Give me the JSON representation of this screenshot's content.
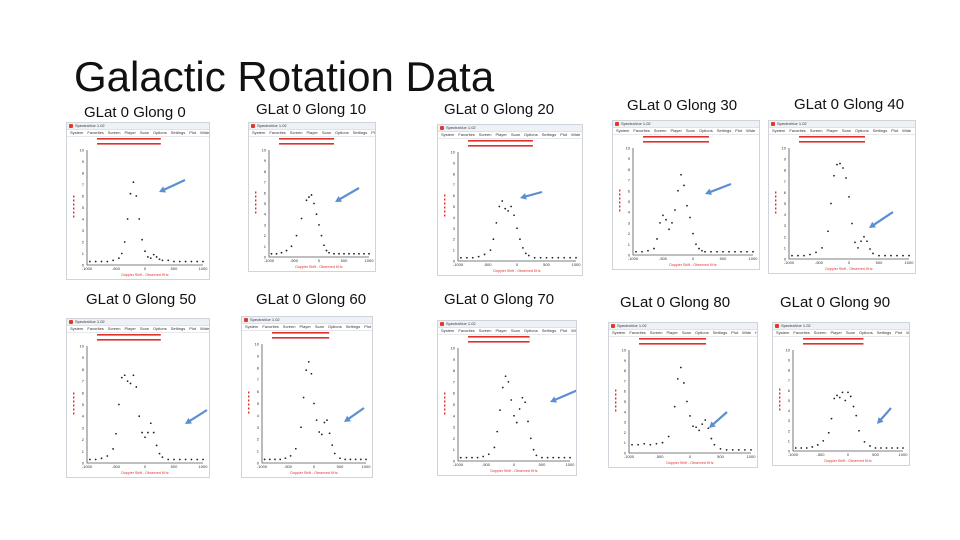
{
  "slide": {
    "title": "Galactic Rotation Data"
  },
  "screenshot_window": {
    "app_title": "SpectraVue 1.02",
    "menu": [
      "System",
      "Favorites",
      "Screen",
      "Player",
      "Scan",
      "Options",
      "Settings",
      "Plot",
      "Wide",
      "Help"
    ],
    "xlabel": "Doppler Shift - Observed KHz",
    "colors": {
      "points": "#222222",
      "annotation": "#e0302a",
      "axis": "#0000cc",
      "arrow": "#5b8fd0"
    }
  },
  "chart_data": [
    {
      "type": "scatter",
      "title": "GLat 0 Glong 0",
      "xlim": [
        -1000,
        1000
      ],
      "ylim": [
        0,
        10
      ],
      "x": [
        -950,
        -850,
        -750,
        -650,
        -550,
        -450,
        -400,
        -350,
        -300,
        -250,
        -200,
        -150,
        -100,
        -50,
        0,
        50,
        100,
        150,
        200,
        250,
        300,
        400,
        500,
        600,
        700,
        800,
        900,
        1000
      ],
      "y": [
        0.3,
        0.3,
        0.3,
        0.3,
        0.4,
        0.6,
        1.0,
        2.0,
        4.0,
        6.2,
        7.2,
        6.0,
        4.0,
        2.2,
        1.2,
        0.7,
        0.6,
        0.9,
        0.7,
        0.5,
        0.4,
        0.4,
        0.3,
        0.3,
        0.3,
        0.3,
        0.3,
        0.3
      ]
    },
    {
      "type": "scatter",
      "title": "GLat 0 Glong 10",
      "xlim": [
        -1000,
        1000
      ],
      "ylim": [
        0,
        10
      ],
      "x": [
        -950,
        -850,
        -750,
        -650,
        -550,
        -450,
        -350,
        -250,
        -200,
        -150,
        -100,
        -50,
        0,
        50,
        100,
        150,
        200,
        300,
        400,
        500,
        600,
        700,
        800,
        900,
        1000
      ],
      "y": [
        0.3,
        0.3,
        0.4,
        0.6,
        1.0,
        2.0,
        3.6,
        5.3,
        5.6,
        5.8,
        5.0,
        4.0,
        3.0,
        2.0,
        1.1,
        0.6,
        0.4,
        0.3,
        0.3,
        0.3,
        0.3,
        0.3,
        0.3,
        0.3,
        0.3
      ]
    },
    {
      "type": "scatter",
      "title": "GLat 0 Glong 20",
      "xlim": [
        -1000,
        1000
      ],
      "ylim": [
        0,
        10
      ],
      "x": [
        -950,
        -850,
        -750,
        -650,
        -550,
        -450,
        -400,
        -350,
        -300,
        -250,
        -200,
        -150,
        -100,
        -50,
        0,
        50,
        100,
        150,
        200,
        300,
        400,
        500,
        600,
        700,
        800,
        900,
        1000
      ],
      "y": [
        0.3,
        0.3,
        0.3,
        0.4,
        0.6,
        1.0,
        2.0,
        3.5,
        5.0,
        5.5,
        4.8,
        4.6,
        5.0,
        4.2,
        3.0,
        2.0,
        1.2,
        0.7,
        0.5,
        0.3,
        0.3,
        0.3,
        0.3,
        0.3,
        0.3,
        0.3,
        0.3
      ]
    },
    {
      "type": "scatter",
      "title": "GLat 0 Glong 30",
      "xlim": [
        -1000,
        1000
      ],
      "ylim": [
        0,
        10
      ],
      "x": [
        -950,
        -850,
        -750,
        -650,
        -600,
        -550,
        -500,
        -450,
        -400,
        -350,
        -300,
        -250,
        -200,
        -150,
        -100,
        -50,
        0,
        50,
        100,
        150,
        200,
        300,
        400,
        500,
        600,
        700,
        800,
        900,
        1000
      ],
      "y": [
        0.3,
        0.3,
        0.4,
        0.6,
        1.5,
        3.0,
        3.7,
        3.3,
        2.4,
        3.0,
        4.2,
        6.0,
        7.5,
        6.5,
        4.6,
        3.5,
        2.0,
        1.0,
        0.6,
        0.4,
        0.3,
        0.3,
        0.3,
        0.3,
        0.3,
        0.3,
        0.3,
        0.3,
        0.3
      ]
    },
    {
      "type": "scatter",
      "title": "GLat 0 Glong 40",
      "xlim": [
        -1000,
        1000
      ],
      "ylim": [
        0,
        10
      ],
      "x": [
        -950,
        -850,
        -750,
        -650,
        -550,
        -450,
        -350,
        -300,
        -250,
        -200,
        -150,
        -100,
        -50,
        0,
        50,
        100,
        150,
        200,
        250,
        300,
        350,
        400,
        500,
        600,
        700,
        800,
        900,
        1000
      ],
      "y": [
        0.3,
        0.3,
        0.3,
        0.4,
        0.6,
        1.0,
        2.5,
        5.0,
        7.5,
        8.5,
        8.6,
        8.2,
        7.3,
        5.6,
        3.2,
        1.5,
        1.0,
        1.6,
        2.0,
        1.6,
        0.9,
        0.5,
        0.3,
        0.3,
        0.3,
        0.3,
        0.3,
        0.3
      ]
    },
    {
      "type": "scatter",
      "title": "GLat 0 Glong 50",
      "xlim": [
        -1000,
        1000
      ],
      "ylim": [
        0,
        10
      ],
      "x": [
        -950,
        -850,
        -750,
        -650,
        -550,
        -500,
        -450,
        -400,
        -350,
        -300,
        -250,
        -200,
        -150,
        -100,
        -50,
        0,
        50,
        100,
        150,
        200,
        250,
        300,
        400,
        500,
        600,
        700,
        800,
        900,
        1000
      ],
      "y": [
        0.3,
        0.3,
        0.4,
        0.6,
        1.2,
        2.5,
        5.0,
        7.3,
        7.5,
        7.0,
        6.8,
        7.5,
        6.5,
        4.0,
        2.6,
        2.2,
        2.6,
        3.4,
        2.6,
        1.5,
        0.8,
        0.5,
        0.3,
        0.3,
        0.3,
        0.3,
        0.3,
        0.3,
        0.3
      ]
    },
    {
      "type": "scatter",
      "title": "GLat 0 Glong 60",
      "xlim": [
        -1000,
        1000
      ],
      "ylim": [
        0,
        10
      ],
      "x": [
        -950,
        -850,
        -750,
        -650,
        -550,
        -450,
        -350,
        -250,
        -200,
        -150,
        -100,
        -50,
        0,
        50,
        100,
        150,
        200,
        250,
        300,
        350,
        400,
        500,
        600,
        700,
        800,
        900,
        1000
      ],
      "y": [
        0.3,
        0.3,
        0.3,
        0.3,
        0.4,
        0.6,
        1.2,
        3.0,
        5.5,
        7.8,
        8.5,
        7.5,
        5.0,
        3.6,
        2.6,
        2.4,
        3.4,
        3.6,
        2.5,
        1.5,
        0.8,
        0.4,
        0.3,
        0.3,
        0.3,
        0.3,
        0.3
      ]
    },
    {
      "type": "scatter",
      "title": "GLat 0 Glong 70",
      "xlim": [
        -1000,
        1000
      ],
      "ylim": [
        0,
        10
      ],
      "x": [
        -950,
        -850,
        -750,
        -650,
        -550,
        -450,
        -350,
        -300,
        -250,
        -200,
        -150,
        -100,
        -50,
        0,
        50,
        100,
        150,
        200,
        250,
        300,
        350,
        400,
        500,
        600,
        700,
        800,
        900,
        1000
      ],
      "y": [
        0.3,
        0.3,
        0.3,
        0.3,
        0.4,
        0.6,
        1.2,
        2.6,
        4.5,
        6.5,
        7.5,
        7.0,
        5.4,
        4.0,
        3.4,
        4.6,
        5.6,
        5.2,
        3.5,
        2.0,
        1.0,
        0.5,
        0.3,
        0.3,
        0.3,
        0.3,
        0.3,
        0.3
      ]
    },
    {
      "type": "scatter",
      "title": "GLat 0 Glong 80",
      "xlim": [
        -1000,
        1000
      ],
      "ylim": [
        0,
        10
      ],
      "x": [
        -950,
        -850,
        -750,
        -650,
        -550,
        -450,
        -350,
        -250,
        -200,
        -150,
        -100,
        -50,
        0,
        50,
        100,
        150,
        200,
        250,
        300,
        350,
        400,
        500,
        600,
        700,
        800,
        900,
        1000
      ],
      "y": [
        0.8,
        0.8,
        0.9,
        0.8,
        0.9,
        1.0,
        1.6,
        4.5,
        7.2,
        8.3,
        6.8,
        5.0,
        3.6,
        2.6,
        2.5,
        2.2,
        2.8,
        3.2,
        2.4,
        1.4,
        0.8,
        0.4,
        0.3,
        0.3,
        0.3,
        0.3,
        0.3
      ]
    },
    {
      "type": "scatter",
      "title": "GLat 0 Glong 90",
      "xlim": [
        -1000,
        1000
      ],
      "ylim": [
        0,
        10
      ],
      "x": [
        -950,
        -850,
        -750,
        -650,
        -550,
        -450,
        -350,
        -300,
        -250,
        -200,
        -150,
        -100,
        -50,
        0,
        50,
        100,
        150,
        200,
        300,
        400,
        500,
        600,
        700,
        800,
        900,
        1000
      ],
      "y": [
        0.3,
        0.3,
        0.3,
        0.4,
        0.6,
        1.0,
        1.8,
        3.2,
        5.2,
        5.5,
        5.3,
        5.8,
        5.0,
        5.8,
        5.4,
        4.4,
        3.5,
        2.0,
        0.9,
        0.5,
        0.3,
        0.3,
        0.3,
        0.3,
        0.3,
        0.3
      ]
    }
  ]
}
